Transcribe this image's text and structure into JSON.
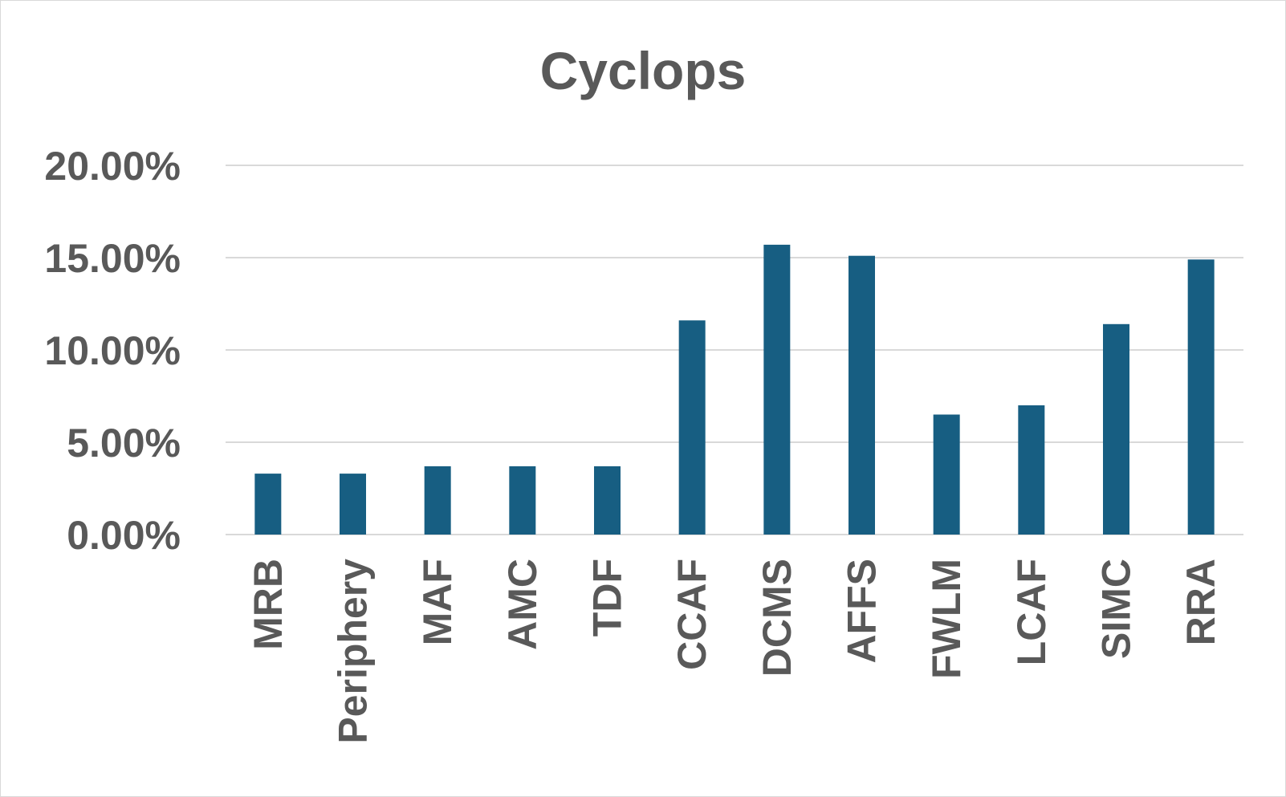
{
  "chart_data": {
    "type": "bar",
    "title": "Cyclops",
    "xlabel": "",
    "ylabel": "",
    "categories": [
      "MRB",
      "Periphery",
      "MAF",
      "AMC",
      "TDF",
      "CCAF",
      "DCMS",
      "AFFS",
      "FWLM",
      "LCAF",
      "SIMC",
      "RRA"
    ],
    "values": [
      3.3,
      3.3,
      3.7,
      3.7,
      3.7,
      11.6,
      15.7,
      15.1,
      6.5,
      7.0,
      11.4,
      14.9
    ],
    "value_unit": "percent",
    "ylim": [
      0,
      20
    ],
    "yticks": [
      0,
      5,
      10,
      15,
      20
    ],
    "ytick_labels": [
      "0.00%",
      "5.00%",
      "10.00%",
      "15.00%",
      "20.00%"
    ],
    "grid": true,
    "legend": "none",
    "bar_color": "#175e82"
  }
}
